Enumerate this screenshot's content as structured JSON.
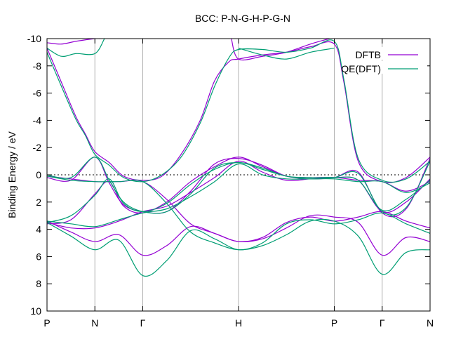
{
  "chart_data": {
    "type": "line",
    "title": "BCC: P-N-G-H-P-G-N",
    "xlabel": "",
    "ylabel": "Binding Energy / eV",
    "ylim": [
      10,
      -10
    ],
    "yticks": [
      "-10",
      "-8",
      "-6",
      "-4",
      "-2",
      "0",
      "2",
      "4",
      "6",
      "8",
      "10"
    ],
    "xlim": [
      0,
      8
    ],
    "x_ticks": [
      {
        "label": "P",
        "x": 0
      },
      {
        "label": "N",
        "x": 1
      },
      {
        "label": "Γ",
        "x": 2
      },
      {
        "label": "H",
        "x": 4
      },
      {
        "label": "P",
        "x": 6
      },
      {
        "label": "Γ",
        "x": 7
      },
      {
        "label": "N",
        "x": 8
      }
    ],
    "grid": "vertical lines at symmetry points",
    "zero_line": "dashed at 0",
    "legend_position": "top-right",
    "colors": {
      "DFTB": "#9400d3",
      "QE(DFT)": "#009e73"
    },
    "series": [
      {
        "name": "DFTB",
        "color": "#9400d3",
        "bands": [
          {
            "x": [
              0,
              0.5,
              1,
              1.3,
              1.6,
              2,
              2.5,
              3,
              3.5,
              4,
              4.5,
              5,
              5.5,
              6,
              6.5,
              7,
              7.5,
              8
            ],
            "y": [
              3.6,
              3.3,
              1.4,
              0.5,
              2.3,
              2.8,
              2.0,
              0.5,
              -0.6,
              -1.3,
              -0.6,
              0.1,
              0.3,
              0.2,
              -0.2,
              2.8,
              2.5,
              -1.2
            ]
          },
          {
            "x": [
              0,
              0.5,
              1,
              1.3,
              1.6,
              2,
              2.5,
              3,
              3.5,
              4,
              4.5,
              5,
              5.5,
              6,
              6.5,
              7,
              7.5,
              8
            ],
            "y": [
              0.2,
              0.4,
              -1.3,
              0.6,
              2.2,
              2.7,
              2.7,
              1.2,
              -0.8,
              -1.2,
              -0.7,
              0.1,
              0.2,
              0.2,
              0.4,
              2.7,
              2.0,
              0.3
            ]
          },
          {
            "x": [
              0,
              0.5,
              1,
              1.5,
              2,
              2.5,
              3,
              3.5,
              4,
              4.5,
              5,
              5.5,
              6,
              6.5,
              7,
              7.5,
              8
            ],
            "y": [
              3.5,
              3.9,
              3.9,
              3.4,
              2.7,
              2.3,
              1.3,
              0.2,
              -1.0,
              -0.2,
              0.4,
              0.3,
              0.2,
              0.4,
              0.5,
              1.2,
              0.5
            ]
          },
          {
            "x": [
              0,
              0.5,
              1,
              1.5,
              2,
              2.5,
              3,
              3.5,
              4,
              4.5,
              5,
              5.5,
              6,
              6.5,
              7,
              7.5,
              8
            ],
            "y": [
              0.1,
              0.3,
              0.5,
              0.5,
              0.5,
              1.8,
              3.6,
              4.3,
              4.9,
              4.7,
              3.9,
              3.0,
              3.1,
              3.5,
              5.9,
              4.6,
              4.9
            ]
          },
          {
            "x": [
              0,
              0.5,
              1,
              1.5,
              2,
              2.5,
              3,
              3.5,
              4,
              4.5,
              5,
              5.5,
              6,
              6.5,
              7,
              7.5,
              8
            ],
            "y": [
              3.4,
              4.2,
              4.9,
              4.4,
              5.9,
              5.2,
              3.8,
              4.3,
              4.9,
              4.6,
              3.5,
              3.1,
              3.4,
              3.1,
              2.7,
              3.4,
              3.9
            ]
          },
          {
            "x": [
              0,
              0.3,
              0.6,
              0.8,
              1,
              1.3,
              1.6,
              2,
              2.4,
              2.8,
              3.2,
              3.5,
              3.8,
              4,
              4.5,
              5,
              5.5,
              6,
              6.2,
              6.5,
              7,
              7.5,
              8
            ],
            "y": [
              -9.3,
              -6.8,
              -4.3,
              -3.0,
              -1.7,
              -0.9,
              0.1,
              0.4,
              0.1,
              -1.5,
              -4.0,
              -6.9,
              -8.3,
              -8.5,
              -8.8,
              -9.0,
              -9.4,
              -9.6,
              -6.8,
              -1.0,
              0.5,
              0.2,
              -1.3
            ]
          },
          {
            "x": [
              0,
              0.3,
              0.6,
              1,
              1.1
            ],
            "y": [
              -9.7,
              -9.6,
              -9.8,
              -10.0,
              -10.0
            ]
          },
          {
            "x": [
              3.85,
              4,
              4.5,
              5,
              5.5,
              5.9
            ],
            "y": [
              -10.0,
              -8.5,
              -8.7,
              -9.0,
              -9.6,
              -10.0
            ]
          }
        ]
      },
      {
        "name": "QE(DFT)",
        "color": "#009e73",
        "bands": [
          {
            "x": [
              0,
              0.5,
              1,
              1.3,
              1.6,
              2,
              2.5,
              3,
              3.5,
              4,
              4.5,
              5,
              5.5,
              6,
              6.5,
              7,
              7.5,
              8
            ],
            "y": [
              3.5,
              3.0,
              1.5,
              0.3,
              2.1,
              2.7,
              2.1,
              0.7,
              -0.4,
              -0.9,
              -0.4,
              0.1,
              0.3,
              0.2,
              -0.1,
              2.7,
              2.4,
              -1.0
            ]
          },
          {
            "x": [
              0,
              0.5,
              1,
              1.3,
              1.6,
              2,
              2.5,
              3,
              3.5,
              4,
              4.5,
              5,
              5.5,
              6,
              6.5,
              7,
              7.5,
              8
            ],
            "y": [
              0.0,
              0.2,
              -1.3,
              0.4,
              2.0,
              2.7,
              2.7,
              1.4,
              -0.5,
              -0.9,
              -0.5,
              0.1,
              0.2,
              0.2,
              0.4,
              2.6,
              1.8,
              0.4
            ]
          },
          {
            "x": [
              0,
              0.5,
              1,
              1.5,
              2,
              2.5,
              3,
              3.5,
              4,
              4.5,
              5,
              5.5,
              6,
              6.5,
              7,
              7.5,
              8
            ],
            "y": [
              3.4,
              3.6,
              3.8,
              3.3,
              2.8,
              2.5,
              1.6,
              0.5,
              -0.8,
              0.0,
              0.3,
              0.3,
              0.3,
              0.5,
              0.5,
              1.3,
              0.6
            ]
          },
          {
            "x": [
              0,
              0.5,
              1,
              1.5,
              2,
              2.5,
              3,
              3.5,
              4,
              4.5,
              5,
              5.5,
              6,
              6.5,
              7,
              7.5,
              8
            ],
            "y": [
              0.1,
              0.4,
              0.5,
              0.5,
              0.5,
              2.1,
              4.2,
              5.0,
              5.5,
              5.2,
              4.4,
              3.4,
              3.4,
              4.5,
              7.3,
              5.7,
              5.5
            ]
          },
          {
            "x": [
              0,
              0.5,
              1,
              1.5,
              2,
              2.5,
              3,
              3.5,
              4,
              4.5,
              5,
              5.5,
              6,
              6.5,
              7,
              7.5,
              8
            ],
            "y": [
              3.5,
              4.5,
              5.5,
              4.8,
              7.4,
              6.3,
              4.1,
              4.7,
              5.5,
              5.0,
              3.6,
              3.3,
              3.6,
              3.3,
              2.8,
              3.6,
              4.3
            ]
          },
          {
            "x": [
              0,
              0.3,
              0.6,
              0.8,
              1,
              1.3,
              1.6,
              2,
              2.4,
              2.8,
              3.2,
              3.5,
              3.8,
              4,
              4.5,
              5,
              5.5,
              6,
              6.2,
              6.5,
              7,
              7.5,
              8
            ],
            "y": [
              -9.0,
              -6.5,
              -4.1,
              -2.9,
              -1.5,
              -0.7,
              0.2,
              0.5,
              0.0,
              -1.3,
              -3.8,
              -6.5,
              -8.6,
              -9.2,
              -9.2,
              -9.0,
              -9.3,
              -9.8,
              -7.0,
              -1.2,
              0.4,
              0.3,
              -1.0
            ]
          },
          {
            "x": [
              0,
              0.3,
              0.6,
              1,
              1.2
            ],
            "y": [
              -9.3,
              -8.7,
              -8.9,
              -8.9,
              -10.0
            ]
          },
          {
            "x": [
              4,
              4.5,
              5,
              5.5,
              6
            ],
            "y": [
              -9.3,
              -8.8,
              -8.5,
              -9.0,
              -9.3
            ]
          }
        ]
      }
    ]
  }
}
